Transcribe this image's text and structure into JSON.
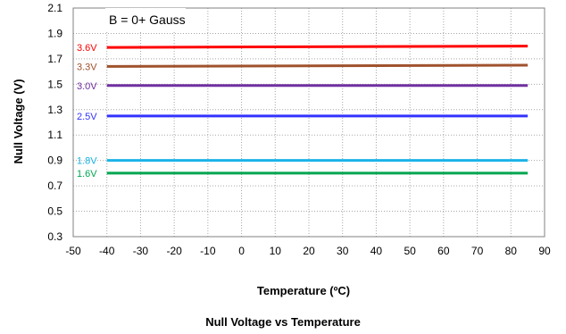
{
  "chart_data": {
    "type": "line",
    "title": "Null Voltage vs Temperature",
    "xlabel": "Temperature (ºC)",
    "ylabel": "Null Voltage (V)",
    "xlim": [
      -50,
      90
    ],
    "ylim": [
      0.3,
      2.1
    ],
    "xticks": [
      "-50",
      "-40",
      "-30",
      "-20",
      "-10",
      "0",
      "10",
      "20",
      "30",
      "40",
      "50",
      "60",
      "70",
      "80",
      "90"
    ],
    "yticks": [
      "0.3",
      "0.5",
      "0.7",
      "0.9",
      "1.1",
      "1.3",
      "1.5",
      "1.7",
      "1.9",
      "2.1"
    ],
    "grid": true,
    "annotation": "B = 0+ Gauss",
    "x": [
      -40,
      85
    ],
    "series": [
      {
        "name": "3.6V",
        "color": "#ff0000",
        "values": [
          1.79,
          1.8
        ]
      },
      {
        "name": "3.3V",
        "color": "#a0522d",
        "values": [
          1.64,
          1.65
        ]
      },
      {
        "name": "3.0V",
        "color": "#7030a0",
        "values": [
          1.49,
          1.49
        ]
      },
      {
        "name": "2.5V",
        "color": "#3333ff",
        "values": [
          1.25,
          1.25
        ]
      },
      {
        "name": "1.8V",
        "color": "#1ab2e6",
        "values": [
          0.9,
          0.9
        ]
      },
      {
        "name": "1.6V",
        "color": "#00a651",
        "values": [
          0.8,
          0.8
        ]
      }
    ]
  }
}
